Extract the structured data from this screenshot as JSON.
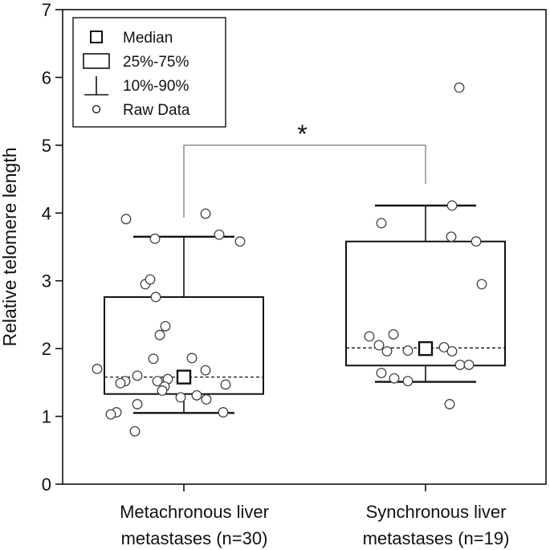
{
  "chart_data": {
    "type": "box",
    "ylabel": "Relative telomere length",
    "ylim": [
      0,
      7
    ],
    "yticks": [
      0,
      1,
      2,
      3,
      4,
      5,
      6,
      7
    ],
    "grid": false,
    "legend": {
      "position": "top-left",
      "entries": [
        "Median",
        "25%-75%",
        "10%-90%",
        "Raw Data"
      ]
    },
    "categories": [
      {
        "line1": "Metachronous  liver",
        "line2": "metastases (n=30)"
      },
      {
        "line1": "Synchronous  liver",
        "line2": "metastases (n=19)"
      }
    ],
    "groups": [
      {
        "median": 1.58,
        "mean": 1.58,
        "q1": 1.33,
        "q3": 2.76,
        "p10": 1.05,
        "p90": 3.65,
        "raw": [
          {
            "x": -0.72,
            "y": 3.91
          },
          {
            "x": 0.27,
            "y": 3.99
          },
          {
            "x": 0.44,
            "y": 3.68
          },
          {
            "x": 0.7,
            "y": 3.58
          },
          {
            "x": -0.36,
            "y": 3.62
          },
          {
            "x": -0.48,
            "y": 2.95
          },
          {
            "x": -0.42,
            "y": 3.02
          },
          {
            "x": -0.35,
            "y": 2.76
          },
          {
            "x": -0.23,
            "y": 2.33
          },
          {
            "x": -0.3,
            "y": 2.2
          },
          {
            "x": -1.08,
            "y": 1.7
          },
          {
            "x": -0.73,
            "y": 1.52
          },
          {
            "x": -0.38,
            "y": 1.85
          },
          {
            "x": 0.1,
            "y": 1.86
          },
          {
            "x": 0.27,
            "y": 1.68
          },
          {
            "x": -0.79,
            "y": 1.49
          },
          {
            "x": -0.58,
            "y": 1.6
          },
          {
            "x": -0.2,
            "y": 1.55
          },
          {
            "x": -0.33,
            "y": 1.52
          },
          {
            "x": -0.24,
            "y": 1.44
          },
          {
            "x": -0.27,
            "y": 1.38
          },
          {
            "x": -0.04,
            "y": 1.28
          },
          {
            "x": 0.16,
            "y": 1.31
          },
          {
            "x": 0.28,
            "y": 1.25
          },
          {
            "x": 0.52,
            "y": 1.47
          },
          {
            "x": -0.58,
            "y": 1.18
          },
          {
            "x": -0.84,
            "y": 1.06
          },
          {
            "x": -0.91,
            "y": 1.03
          },
          {
            "x": 0.49,
            "y": 1.06
          },
          {
            "x": -0.61,
            "y": 0.78
          }
        ]
      },
      {
        "median": 2.0,
        "mean": 2.01,
        "q1": 1.75,
        "q3": 3.58,
        "p10": 1.51,
        "p90": 4.11,
        "raw": [
          {
            "x": -0.55,
            "y": 3.85
          },
          {
            "x": 0.33,
            "y": 4.11
          },
          {
            "x": 0.42,
            "y": 5.85
          },
          {
            "x": 0.32,
            "y": 3.65
          },
          {
            "x": 0.63,
            "y": 3.58
          },
          {
            "x": 0.7,
            "y": 2.95
          },
          {
            "x": -0.7,
            "y": 2.18
          },
          {
            "x": -0.4,
            "y": 2.21
          },
          {
            "x": -0.58,
            "y": 2.05
          },
          {
            "x": -0.48,
            "y": 1.96
          },
          {
            "x": -0.22,
            "y": 1.97
          },
          {
            "x": 0.23,
            "y": 2.02
          },
          {
            "x": 0.33,
            "y": 1.96
          },
          {
            "x": 0.43,
            "y": 1.76
          },
          {
            "x": 0.54,
            "y": 1.76
          },
          {
            "x": -0.39,
            "y": 1.56
          },
          {
            "x": -0.55,
            "y": 1.64
          },
          {
            "x": -0.22,
            "y": 1.52
          },
          {
            "x": 0.3,
            "y": 1.18
          }
        ]
      }
    ],
    "significance": {
      "between": [
        0,
        1
      ],
      "label": "*",
      "y": 5.0
    }
  }
}
